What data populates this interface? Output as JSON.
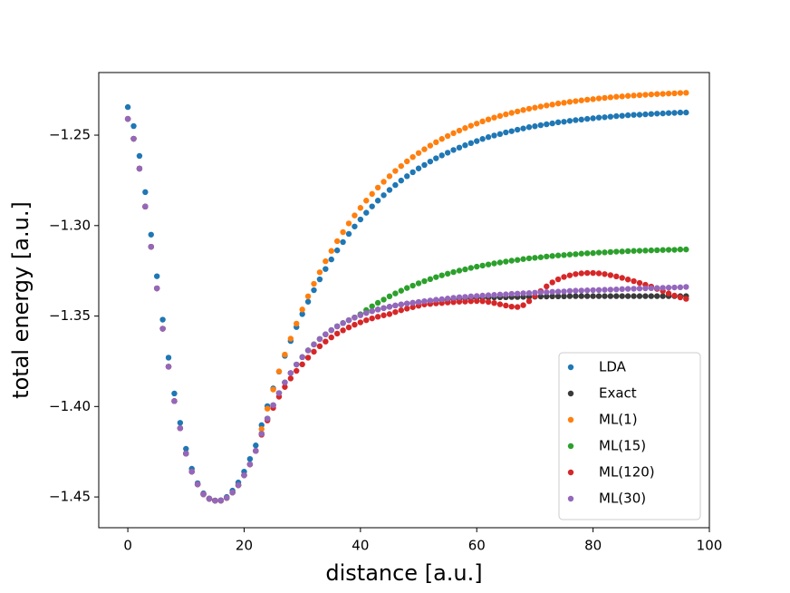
{
  "chart_data": {
    "type": "scatter",
    "xlabel": "distance [a.u.]",
    "ylabel": "total energy [a.u.]",
    "xlim": [
      -5,
      100
    ],
    "ylim": [
      -1.467,
      -1.2154
    ],
    "xticks": [
      0,
      20,
      40,
      60,
      80,
      100
    ],
    "yticks": [
      {
        "value": -1.45,
        "label": "−1.45"
      },
      {
        "value": -1.4,
        "label": "−1.40"
      },
      {
        "value": -1.35,
        "label": "−1.35"
      },
      {
        "value": -1.3,
        "label": "−1.30"
      },
      {
        "value": -1.25,
        "label": "−1.25"
      }
    ],
    "legend": "lower right",
    "x": [
      0,
      1,
      2,
      3,
      4,
      5,
      6,
      7,
      8,
      9,
      10,
      11,
      12,
      13,
      14,
      15,
      16,
      17,
      18,
      19,
      20,
      21,
      22,
      23,
      24,
      25,
      26,
      27,
      28,
      29,
      30,
      31,
      32,
      33,
      34,
      35,
      36,
      37,
      38,
      39,
      40,
      41,
      42,
      43,
      44,
      45,
      46,
      47,
      48,
      49,
      50,
      51,
      52,
      53,
      54,
      55,
      56,
      57,
      58,
      59,
      60,
      61,
      62,
      63,
      64,
      65,
      66,
      67,
      68,
      69,
      70,
      71,
      72,
      73,
      74,
      75,
      76,
      77,
      78,
      79,
      80,
      81,
      82,
      83,
      84,
      85,
      86,
      87,
      88,
      89,
      90,
      91,
      92,
      93,
      94,
      95,
      96
    ],
    "series": [
      {
        "name": "LDA",
        "color": "#1f77b4",
        "values": [
          -1.2345,
          -1.245,
          -1.2615,
          -1.2815,
          -1.305,
          -1.328,
          -1.352,
          -1.373,
          -1.3928,
          -1.409,
          -1.4234,
          -1.4344,
          -1.4424,
          -1.448,
          -1.4508,
          -1.452,
          -1.4518,
          -1.45,
          -1.4465,
          -1.442,
          -1.436,
          -1.429,
          -1.4215,
          -1.4103,
          -1.3998,
          -1.39,
          -1.3807,
          -1.372,
          -1.3638,
          -1.3561,
          -1.3489,
          -1.3421,
          -1.3357,
          -1.3297,
          -1.324,
          -1.3187,
          -1.3137,
          -1.3091,
          -1.3046,
          -1.3005,
          -1.2966,
          -1.2929,
          -1.2894,
          -1.2862,
          -1.2832,
          -1.2803,
          -1.2776,
          -1.2751,
          -1.2727,
          -1.2705,
          -1.2684,
          -1.2665,
          -1.2646,
          -1.2628,
          -1.2612,
          -1.2597,
          -1.2582,
          -1.2569,
          -1.2556,
          -1.2544,
          -1.2533,
          -1.2521,
          -1.2511,
          -1.2502,
          -1.2494,
          -1.2485,
          -1.2478,
          -1.247,
          -1.2463,
          -1.2456,
          -1.2451,
          -1.2445,
          -1.244,
          -1.2435,
          -1.2429,
          -1.2426,
          -1.2421,
          -1.2417,
          -1.2414,
          -1.241,
          -1.2407,
          -1.2403,
          -1.2401,
          -1.2398,
          -1.2395,
          -1.2393,
          -1.239,
          -1.2388,
          -1.2387,
          -1.2385,
          -1.2383,
          -1.2381,
          -1.238,
          -1.2378,
          -1.2377,
          -1.2375,
          -1.2375
        ]
      },
      {
        "name": "Exact",
        "color": "#3a3a3a",
        "values": [
          -1.241,
          -1.252,
          -1.2685,
          -1.2895,
          -1.3117,
          -1.3347,
          -1.357,
          -1.378,
          -1.397,
          -1.412,
          -1.426,
          -1.436,
          -1.443,
          -1.4485,
          -1.451,
          -1.452,
          -1.452,
          -1.4505,
          -1.4475,
          -1.4435,
          -1.438,
          -1.432,
          -1.4245,
          -1.4151,
          -1.4067,
          -1.3993,
          -1.3926,
          -1.3867,
          -1.3815,
          -1.3768,
          -1.3727,
          -1.369,
          -1.3657,
          -1.3627,
          -1.3601,
          -1.3578,
          -1.3557,
          -1.3539,
          -1.3523,
          -1.3508,
          -1.3495,
          -1.3483,
          -1.3473,
          -1.3464,
          -1.3456,
          -1.3449,
          -1.3442,
          -1.3436,
          -1.3431,
          -1.3427,
          -1.3423,
          -1.3419,
          -1.3416,
          -1.3413,
          -1.3411,
          -1.3408,
          -1.3406,
          -1.3404,
          -1.3403,
          -1.3401,
          -1.34,
          -1.3399,
          -1.3398,
          -1.3397,
          -1.3396,
          -1.3396,
          -1.3395,
          -1.3395,
          -1.3394,
          -1.3394,
          -1.3393,
          -1.3392,
          -1.3392,
          -1.3391,
          -1.3391,
          -1.3391,
          -1.339,
          -1.339,
          -1.339,
          -1.339,
          -1.339,
          -1.339,
          -1.339,
          -1.339,
          -1.339,
          -1.339,
          -1.339,
          -1.339,
          -1.339,
          -1.339,
          -1.339,
          -1.339,
          -1.339,
          -1.339,
          -1.339,
          -1.339,
          -1.339
        ]
      },
      {
        "name": "ML(1)",
        "color": "#ff7f0e",
        "values": [
          -1.241,
          -1.252,
          -1.2685,
          -1.2895,
          -1.3117,
          -1.3347,
          -1.357,
          -1.378,
          -1.397,
          -1.412,
          -1.426,
          -1.436,
          -1.443,
          -1.4485,
          -1.451,
          -1.452,
          -1.452,
          -1.4505,
          -1.4475,
          -1.4435,
          -1.438,
          -1.432,
          -1.4245,
          -1.4125,
          -1.4012,
          -1.3906,
          -1.3806,
          -1.3713,
          -1.3625,
          -1.3542,
          -1.3464,
          -1.3391,
          -1.3322,
          -1.3258,
          -1.3197,
          -1.314,
          -1.3086,
          -1.3036,
          -1.2988,
          -1.2944,
          -1.2902,
          -1.2862,
          -1.2825,
          -1.279,
          -1.2758,
          -1.2727,
          -1.2698,
          -1.2671,
          -1.2645,
          -1.2621,
          -1.2599,
          -1.2578,
          -1.2558,
          -1.2539,
          -1.2521,
          -1.2505,
          -1.2489,
          -1.2475,
          -1.2461,
          -1.2448,
          -1.2436,
          -1.2424,
          -1.2413,
          -1.2403,
          -1.2394,
          -1.2385,
          -1.2377,
          -1.2369,
          -1.2361,
          -1.2354,
          -1.2348,
          -1.2342,
          -1.2336,
          -1.2331,
          -1.2325,
          -1.2321,
          -1.2316,
          -1.2312,
          -1.2308,
          -1.2304,
          -1.2301,
          -1.2297,
          -1.2294,
          -1.2291,
          -1.2288,
          -1.2286,
          -1.2283,
          -1.2281,
          -1.2279,
          -1.2277,
          -1.2275,
          -1.2273,
          -1.2272,
          -1.227,
          -1.2269,
          -1.2267,
          -1.2266
        ]
      },
      {
        "name": "ML(15)",
        "color": "#2ca02c",
        "values": [
          -1.241,
          -1.252,
          -1.2685,
          -1.2895,
          -1.3117,
          -1.3347,
          -1.357,
          -1.378,
          -1.397,
          -1.412,
          -1.426,
          -1.436,
          -1.443,
          -1.4485,
          -1.451,
          -1.452,
          -1.452,
          -1.4505,
          -1.4475,
          -1.4435,
          -1.438,
          -1.432,
          -1.4245,
          -1.4151,
          -1.4067,
          -1.3993,
          -1.3926,
          -1.3867,
          -1.3815,
          -1.3768,
          -1.3727,
          -1.369,
          -1.3657,
          -1.3627,
          -1.3601,
          -1.3578,
          -1.3557,
          -1.3539,
          -1.3523,
          -1.3508,
          -1.349,
          -1.3467,
          -1.3446,
          -1.3427,
          -1.3409,
          -1.3391,
          -1.3375,
          -1.336,
          -1.3345,
          -1.3332,
          -1.3319,
          -1.3307,
          -1.3296,
          -1.3285,
          -1.3275,
          -1.3266,
          -1.3257,
          -1.3249,
          -1.3242,
          -1.3234,
          -1.3227,
          -1.3221,
          -1.3215,
          -1.3209,
          -1.3204,
          -1.3199,
          -1.3194,
          -1.319,
          -1.3185,
          -1.3181,
          -1.3178,
          -1.3175,
          -1.3171,
          -1.3168,
          -1.3165,
          -1.3163,
          -1.316,
          -1.3158,
          -1.3155,
          -1.3153,
          -1.3152,
          -1.3149,
          -1.3148,
          -1.3146,
          -1.3144,
          -1.3143,
          -1.3141,
          -1.314,
          -1.3139,
          -1.3138,
          -1.3137,
          -1.3136,
          -1.3135,
          -1.3134,
          -1.3134,
          -1.3132,
          -1.3132
        ]
      },
      {
        "name": "ML(120)",
        "color": "#d62728",
        "values": [
          -1.241,
          -1.252,
          -1.2685,
          -1.2895,
          -1.3117,
          -1.3347,
          -1.357,
          -1.378,
          -1.397,
          -1.412,
          -1.426,
          -1.436,
          -1.443,
          -1.4485,
          -1.451,
          -1.452,
          -1.452,
          -1.4505,
          -1.4475,
          -1.4435,
          -1.438,
          -1.432,
          -1.4245,
          -1.4156,
          -1.4077,
          -1.4008,
          -1.3946,
          -1.3892,
          -1.3845,
          -1.3803,
          -1.3767,
          -1.373,
          -1.3697,
          -1.3667,
          -1.3641,
          -1.3618,
          -1.3597,
          -1.3579,
          -1.3563,
          -1.3548,
          -1.3535,
          -1.3523,
          -1.3513,
          -1.3504,
          -1.3496,
          -1.3489,
          -1.3478,
          -1.3468,
          -1.3459,
          -1.3451,
          -1.3443,
          -1.3436,
          -1.3433,
          -1.343,
          -1.3428,
          -1.3425,
          -1.3423,
          -1.3421,
          -1.342,
          -1.3418,
          -1.3417,
          -1.3418,
          -1.3422,
          -1.3428,
          -1.3435,
          -1.3442,
          -1.3448,
          -1.345,
          -1.344,
          -1.3418,
          -1.339,
          -1.3362,
          -1.3336,
          -1.3314,
          -1.3297,
          -1.3284,
          -1.3275,
          -1.3268,
          -1.3264,
          -1.3262,
          -1.3262,
          -1.3264,
          -1.3268,
          -1.3274,
          -1.3281,
          -1.3289,
          -1.3298,
          -1.3307,
          -1.3317,
          -1.3327,
          -1.3337,
          -1.335,
          -1.3362,
          -1.3375,
          -1.3387,
          -1.3397,
          -1.3405
        ]
      },
      {
        "name": "ML(30)",
        "color": "#9467bd",
        "values": [
          -1.241,
          -1.252,
          -1.2685,
          -1.2895,
          -1.3117,
          -1.3347,
          -1.357,
          -1.378,
          -1.397,
          -1.412,
          -1.426,
          -1.436,
          -1.443,
          -1.4485,
          -1.451,
          -1.452,
          -1.452,
          -1.4505,
          -1.4475,
          -1.4435,
          -1.438,
          -1.432,
          -1.4245,
          -1.4151,
          -1.4067,
          -1.3993,
          -1.3926,
          -1.3867,
          -1.3815,
          -1.3768,
          -1.3727,
          -1.369,
          -1.3657,
          -1.3627,
          -1.3601,
          -1.3578,
          -1.3557,
          -1.3539,
          -1.3523,
          -1.3508,
          -1.3495,
          -1.3483,
          -1.3473,
          -1.3464,
          -1.3456,
          -1.3449,
          -1.3442,
          -1.3436,
          -1.3431,
          -1.3427,
          -1.3423,
          -1.3418,
          -1.3414,
          -1.341,
          -1.3407,
          -1.3403,
          -1.3399,
          -1.3396,
          -1.3394,
          -1.3391,
          -1.3389,
          -1.3387,
          -1.3385,
          -1.3383,
          -1.3381,
          -1.338,
          -1.3377,
          -1.3376,
          -1.3374,
          -1.3373,
          -1.3371,
          -1.3369,
          -1.3368,
          -1.3366,
          -1.3365,
          -1.3364,
          -1.3361,
          -1.336,
          -1.3359,
          -1.3358,
          -1.3357,
          -1.3356,
          -1.3355,
          -1.3354,
          -1.3353,
          -1.3351,
          -1.335,
          -1.3349,
          -1.3348,
          -1.3347,
          -1.3346,
          -1.3345,
          -1.3344,
          -1.3343,
          -1.3342,
          -1.3341,
          -1.3339
        ]
      }
    ]
  }
}
